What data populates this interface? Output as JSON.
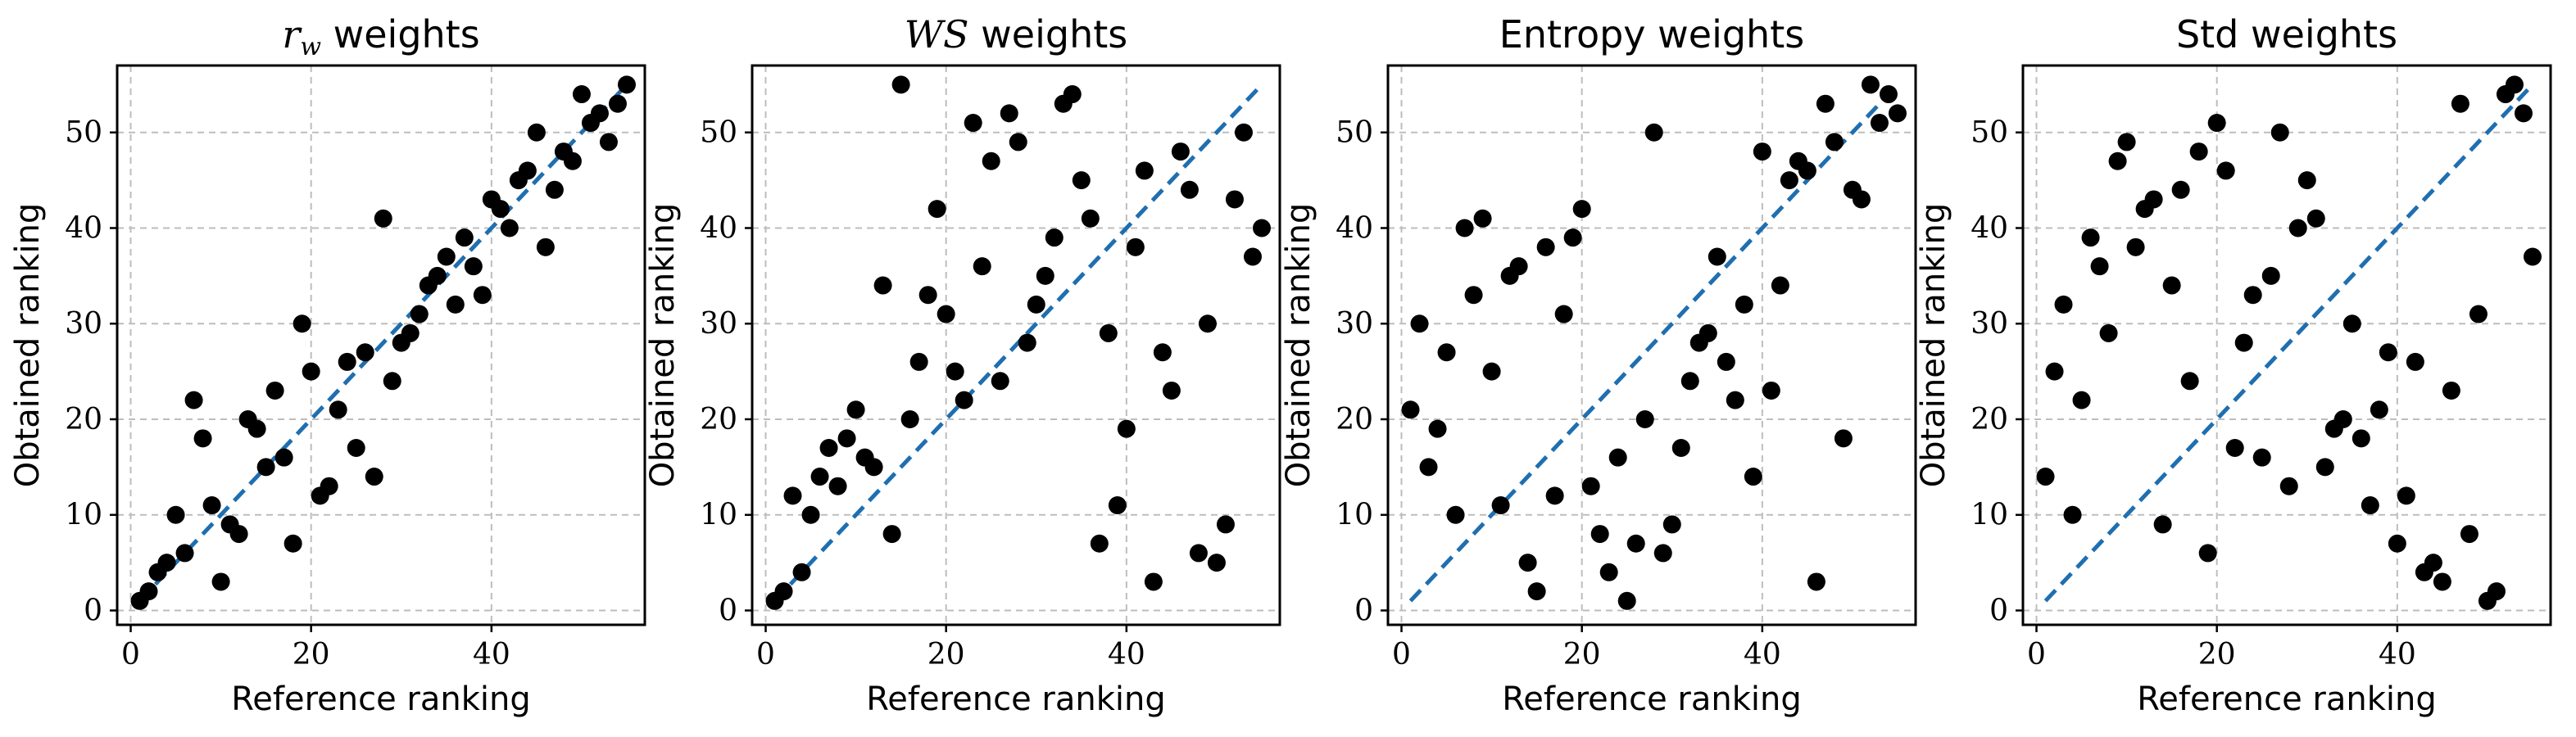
{
  "chart_data": [
    {
      "type": "scatter",
      "title": "r_w weights",
      "title_main": "r",
      "title_sub": "w",
      "title_rest": " weights",
      "title_style": "math-sub",
      "xlabel": "Reference ranking",
      "ylabel": "Obtained ranking",
      "xlim": [
        -1.5,
        57
      ],
      "ylim": [
        -1.5,
        57
      ],
      "xticks": [
        0,
        20,
        40
      ],
      "yticks": [
        0,
        10,
        20,
        30,
        40,
        50
      ],
      "grid": true,
      "reference_line": {
        "from": [
          1,
          1
        ],
        "to": [
          55,
          55
        ],
        "color": "#1f6fb0",
        "style": "dashed"
      },
      "points": [
        [
          1,
          1
        ],
        [
          2,
          2
        ],
        [
          3,
          4
        ],
        [
          4,
          5
        ],
        [
          5,
          10
        ],
        [
          6,
          6
        ],
        [
          7,
          22
        ],
        [
          8,
          18
        ],
        [
          9,
          11
        ],
        [
          10,
          3
        ],
        [
          11,
          9
        ],
        [
          12,
          8
        ],
        [
          13,
          20
        ],
        [
          14,
          19
        ],
        [
          15,
          15
        ],
        [
          16,
          23
        ],
        [
          17,
          16
        ],
        [
          18,
          7
        ],
        [
          19,
          30
        ],
        [
          20,
          25
        ],
        [
          21,
          12
        ],
        [
          22,
          13
        ],
        [
          23,
          21
        ],
        [
          24,
          26
        ],
        [
          25,
          17
        ],
        [
          26,
          27
        ],
        [
          27,
          14
        ],
        [
          28,
          41
        ],
        [
          29,
          24
        ],
        [
          30,
          28
        ],
        [
          31,
          29
        ],
        [
          32,
          31
        ],
        [
          33,
          34
        ],
        [
          34,
          35
        ],
        [
          35,
          37
        ],
        [
          36,
          32
        ],
        [
          37,
          39
        ],
        [
          38,
          36
        ],
        [
          39,
          33
        ],
        [
          40,
          43
        ],
        [
          41,
          42
        ],
        [
          42,
          40
        ],
        [
          43,
          45
        ],
        [
          44,
          46
        ],
        [
          45,
          50
        ],
        [
          46,
          38
        ],
        [
          47,
          44
        ],
        [
          48,
          48
        ],
        [
          49,
          47
        ],
        [
          50,
          54
        ],
        [
          51,
          51
        ],
        [
          52,
          52
        ],
        [
          53,
          49
        ],
        [
          54,
          53
        ],
        [
          55,
          55
        ]
      ]
    },
    {
      "type": "scatter",
      "title": "WS weights",
      "title_main": "WS",
      "title_rest": " weights",
      "title_style": "math-italic",
      "xlabel": "Reference ranking",
      "ylabel": "Obtained ranking",
      "xlim": [
        -1.5,
        57
      ],
      "ylim": [
        -1.5,
        57
      ],
      "xticks": [
        0,
        20,
        40
      ],
      "yticks": [
        0,
        10,
        20,
        30,
        40,
        50
      ],
      "grid": true,
      "reference_line": {
        "from": [
          1,
          1
        ],
        "to": [
          55,
          55
        ],
        "color": "#1f6fb0",
        "style": "dashed"
      },
      "points": [
        [
          1,
          1
        ],
        [
          2,
          2
        ],
        [
          3,
          12
        ],
        [
          4,
          4
        ],
        [
          5,
          10
        ],
        [
          6,
          14
        ],
        [
          7,
          17
        ],
        [
          8,
          13
        ],
        [
          9,
          18
        ],
        [
          10,
          21
        ],
        [
          11,
          16
        ],
        [
          12,
          15
        ],
        [
          13,
          34
        ],
        [
          14,
          8
        ],
        [
          15,
          55
        ],
        [
          16,
          20
        ],
        [
          17,
          26
        ],
        [
          18,
          33
        ],
        [
          19,
          42
        ],
        [
          20,
          31
        ],
        [
          21,
          25
        ],
        [
          22,
          22
        ],
        [
          23,
          51
        ],
        [
          24,
          36
        ],
        [
          25,
          47
        ],
        [
          26,
          24
        ],
        [
          27,
          52
        ],
        [
          28,
          49
        ],
        [
          29,
          28
        ],
        [
          30,
          32
        ],
        [
          31,
          35
        ],
        [
          32,
          39
        ],
        [
          33,
          53
        ],
        [
          34,
          54
        ],
        [
          35,
          45
        ],
        [
          36,
          41
        ],
        [
          37,
          7
        ],
        [
          38,
          29
        ],
        [
          39,
          11
        ],
        [
          40,
          19
        ],
        [
          41,
          38
        ],
        [
          42,
          46
        ],
        [
          43,
          3
        ],
        [
          44,
          27
        ],
        [
          45,
          23
        ],
        [
          46,
          48
        ],
        [
          47,
          44
        ],
        [
          48,
          6
        ],
        [
          49,
          30
        ],
        [
          50,
          5
        ],
        [
          51,
          9
        ],
        [
          52,
          43
        ],
        [
          53,
          50
        ],
        [
          54,
          37
        ],
        [
          55,
          40
        ]
      ]
    },
    {
      "type": "scatter",
      "title": "Entropy weights",
      "title_main": "Entropy weights",
      "title_style": "plain",
      "xlabel": "Reference ranking",
      "ylabel": "Obtained ranking",
      "xlim": [
        -1.5,
        57
      ],
      "ylim": [
        -1.5,
        57
      ],
      "xticks": [
        0,
        20,
        40
      ],
      "yticks": [
        0,
        10,
        20,
        30,
        40,
        50
      ],
      "grid": true,
      "reference_line": {
        "from": [
          1,
          1
        ],
        "to": [
          55,
          55
        ],
        "color": "#1f6fb0",
        "style": "dashed"
      },
      "points": [
        [
          1,
          21
        ],
        [
          2,
          30
        ],
        [
          3,
          15
        ],
        [
          4,
          19
        ],
        [
          5,
          27
        ],
        [
          6,
          10
        ],
        [
          7,
          40
        ],
        [
          8,
          33
        ],
        [
          9,
          41
        ],
        [
          10,
          25
        ],
        [
          11,
          11
        ],
        [
          12,
          35
        ],
        [
          13,
          36
        ],
        [
          14,
          5
        ],
        [
          15,
          2
        ],
        [
          16,
          38
        ],
        [
          17,
          12
        ],
        [
          18,
          31
        ],
        [
          19,
          39
        ],
        [
          20,
          42
        ],
        [
          21,
          13
        ],
        [
          22,
          8
        ],
        [
          23,
          4
        ],
        [
          24,
          16
        ],
        [
          25,
          1
        ],
        [
          26,
          7
        ],
        [
          27,
          20
        ],
        [
          28,
          50
        ],
        [
          29,
          6
        ],
        [
          30,
          9
        ],
        [
          31,
          17
        ],
        [
          32,
          24
        ],
        [
          33,
          28
        ],
        [
          34,
          29
        ],
        [
          35,
          37
        ],
        [
          36,
          26
        ],
        [
          37,
          22
        ],
        [
          38,
          32
        ],
        [
          39,
          14
        ],
        [
          40,
          48
        ],
        [
          41,
          23
        ],
        [
          42,
          34
        ],
        [
          43,
          45
        ],
        [
          44,
          47
        ],
        [
          45,
          46
        ],
        [
          46,
          3
        ],
        [
          47,
          53
        ],
        [
          48,
          49
        ],
        [
          49,
          18
        ],
        [
          50,
          44
        ],
        [
          51,
          43
        ],
        [
          52,
          55
        ],
        [
          53,
          51
        ],
        [
          54,
          54
        ],
        [
          55,
          52
        ]
      ]
    },
    {
      "type": "scatter",
      "title": "Std weights",
      "title_main": "Std weights",
      "title_style": "plain",
      "xlabel": "Reference ranking",
      "ylabel": "Obtained ranking",
      "xlim": [
        -1.5,
        57
      ],
      "ylim": [
        -1.5,
        57
      ],
      "xticks": [
        0,
        20,
        40
      ],
      "yticks": [
        0,
        10,
        20,
        30,
        40,
        50
      ],
      "grid": true,
      "reference_line": {
        "from": [
          1,
          1
        ],
        "to": [
          55,
          55
        ],
        "color": "#1f6fb0",
        "style": "dashed"
      },
      "points": [
        [
          1,
          14
        ],
        [
          2,
          25
        ],
        [
          3,
          32
        ],
        [
          4,
          10
        ],
        [
          5,
          22
        ],
        [
          6,
          39
        ],
        [
          7,
          36
        ],
        [
          8,
          29
        ],
        [
          9,
          47
        ],
        [
          10,
          49
        ],
        [
          11,
          38
        ],
        [
          12,
          42
        ],
        [
          13,
          43
        ],
        [
          14,
          9
        ],
        [
          15,
          34
        ],
        [
          16,
          44
        ],
        [
          17,
          24
        ],
        [
          18,
          48
        ],
        [
          19,
          6
        ],
        [
          20,
          51
        ],
        [
          21,
          46
        ],
        [
          22,
          17
        ],
        [
          23,
          28
        ],
        [
          24,
          33
        ],
        [
          25,
          16
        ],
        [
          26,
          35
        ],
        [
          27,
          50
        ],
        [
          28,
          13
        ],
        [
          29,
          40
        ],
        [
          30,
          45
        ],
        [
          31,
          41
        ],
        [
          32,
          15
        ],
        [
          33,
          19
        ],
        [
          34,
          20
        ],
        [
          35,
          30
        ],
        [
          36,
          18
        ],
        [
          37,
          11
        ],
        [
          38,
          21
        ],
        [
          39,
          27
        ],
        [
          40,
          7
        ],
        [
          41,
          12
        ],
        [
          42,
          26
        ],
        [
          43,
          4
        ],
        [
          44,
          5
        ],
        [
          45,
          3
        ],
        [
          46,
          23
        ],
        [
          47,
          53
        ],
        [
          48,
          8
        ],
        [
          49,
          31
        ],
        [
          50,
          1
        ],
        [
          51,
          2
        ],
        [
          52,
          54
        ],
        [
          53,
          55
        ],
        [
          54,
          52
        ],
        [
          55,
          37
        ]
      ]
    }
  ]
}
